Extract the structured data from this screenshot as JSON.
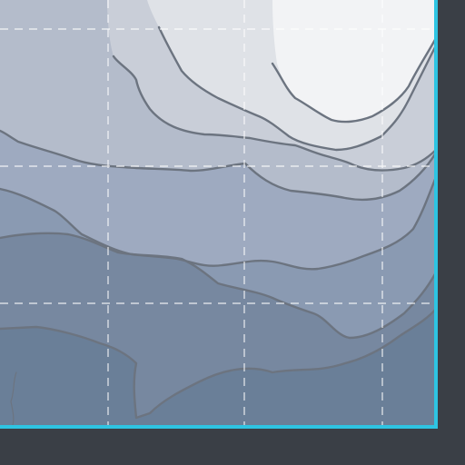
{
  "map": {
    "style": "bathymetric-contour",
    "colors": {
      "background": "#3a3f46",
      "border": "#2ec4e2",
      "contour_line": "#6c7480",
      "grid_line": "#ffffff",
      "bands": [
        "#f2f3f5",
        "#dfe2e7",
        "#c9ced8",
        "#b4bccb",
        "#9eaac0",
        "#8a9ab2",
        "#7788a0",
        "#6a7f98"
      ]
    },
    "graticule": "dashed",
    "labels": []
  }
}
